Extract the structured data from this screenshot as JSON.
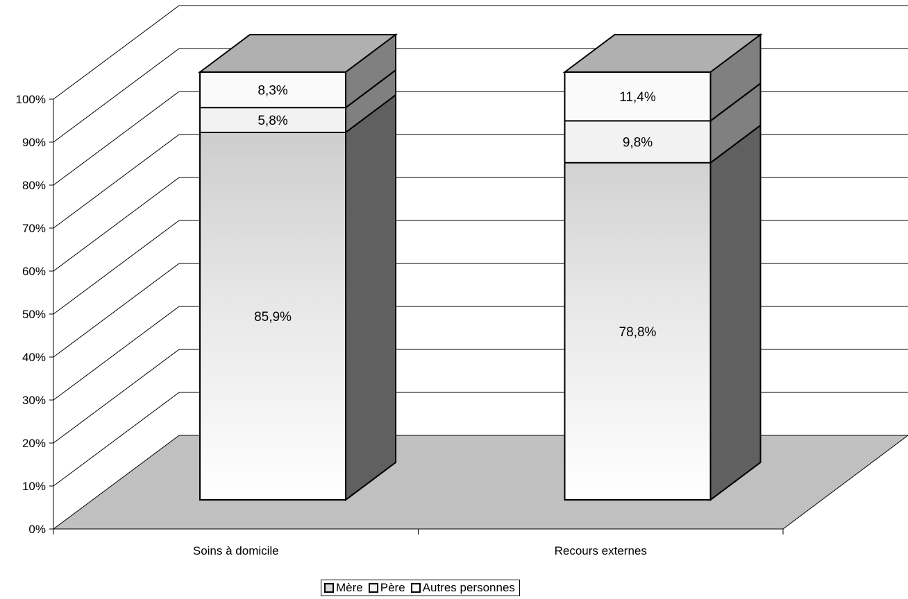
{
  "chart_data": {
    "type": "bar",
    "stacked": true,
    "percent": true,
    "three_d": true,
    "categories": [
      "Soins à domicile",
      "Recours externes"
    ],
    "series": [
      {
        "name": "Mère",
        "values": [
          85.9,
          78.8
        ],
        "labels": [
          "85,9%",
          "78,8%"
        ],
        "color": "#d8d8d8"
      },
      {
        "name": "Père",
        "values": [
          5.8,
          9.8
        ],
        "labels": [
          "5,8%",
          "9,8%"
        ],
        "color": "#f2f2f2"
      },
      {
        "name": "Autres personnes",
        "values": [
          8.3,
          11.4
        ],
        "labels": [
          "8,3%",
          "11,4%"
        ],
        "color": "#fafafa"
      }
    ],
    "yticks": [
      "0%",
      "10%",
      "20%",
      "30%",
      "40%",
      "50%",
      "60%",
      "70%",
      "80%",
      "90%",
      "100%"
    ],
    "ylim": [
      0,
      100
    ],
    "grid": true,
    "legend": "bottom",
    "colors": {
      "floor": "#c0c0c0",
      "side": "#606060",
      "top": "#b0b0b0"
    }
  }
}
